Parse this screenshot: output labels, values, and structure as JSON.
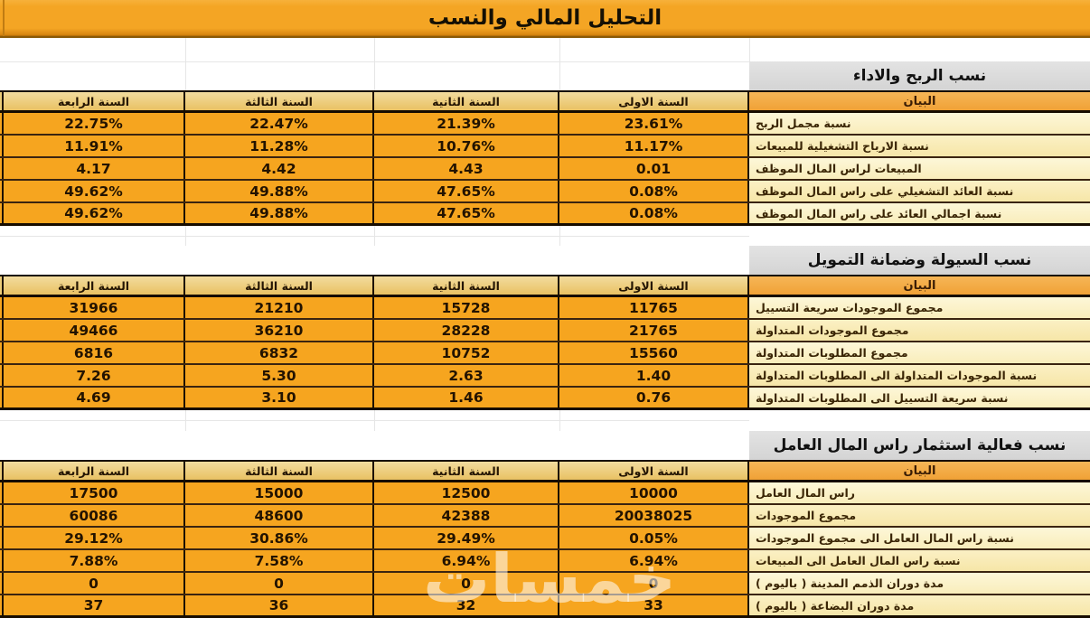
{
  "title": "التحليل المالي والنسب",
  "watermark": "خمسات",
  "colors": {
    "accent_orange": "#F4A524",
    "cell_cream": "#FBF1C6",
    "band_gray": "#D8D8D8"
  },
  "columns": {
    "statement": "البيان",
    "year1": "السنة الاولى",
    "year2": "السنة الثانية",
    "year3": "السنة الثالثة",
    "year4": "السنة الرابعة"
  },
  "sections": [
    {
      "heading": "نسب الربح والاداء",
      "rows": [
        {
          "label": "نسبة مجمل الربح",
          "y1": "23.61%",
          "y2": "21.39%",
          "y3": "22.47%",
          "y4": "22.75%"
        },
        {
          "label": "نسبة الارباح التشغيلية للمبيعات",
          "y1": "11.17%",
          "y2": "10.76%",
          "y3": "11.28%",
          "y4": "11.91%"
        },
        {
          "label": "المبيعات لراس المال الموظف",
          "y1": "0.01",
          "y2": "4.43",
          "y3": "4.42",
          "y4": "4.17"
        },
        {
          "label": "نسبة العائد التشغيلي على راس المال الموظف",
          "y1": "0.08%",
          "y2": "47.65%",
          "y3": "49.88%",
          "y4": "49.62%"
        },
        {
          "label": "نسبة اجمالي العائد على راس المال الموظف",
          "y1": "0.08%",
          "y2": "47.65%",
          "y3": "49.88%",
          "y4": "49.62%"
        }
      ]
    },
    {
      "heading": "نسب السيولة وضمانة التمويل",
      "rows": [
        {
          "label": "مجموع الموجودات سريعة التسييل",
          "y1": "11765",
          "y2": "15728",
          "y3": "21210",
          "y4": "31966"
        },
        {
          "label": "مجموع الموجودات المتداولة",
          "y1": "21765",
          "y2": "28228",
          "y3": "36210",
          "y4": "49466"
        },
        {
          "label": "مجموع المطلوبات المتداولة",
          "y1": "15560",
          "y2": "10752",
          "y3": "6832",
          "y4": "6816"
        },
        {
          "label": "نسبة الموجودات المتداولة الى المطلوبات المتداولة",
          "y1": "1.40",
          "y2": "2.63",
          "y3": "5.30",
          "y4": "7.26"
        },
        {
          "label": "نسبة سريعة التسييل الى المطلوبات المتداولة",
          "y1": "0.76",
          "y2": "1.46",
          "y3": "3.10",
          "y4": "4.69"
        }
      ]
    },
    {
      "heading": "نسب فعالية استثمار راس المال العامل",
      "rows": [
        {
          "label": "راس المال العامل",
          "y1": "10000",
          "y2": "12500",
          "y3": "15000",
          "y4": "17500"
        },
        {
          "label": "مجموع الموجودات",
          "y1": "20038025",
          "y2": "42388",
          "y3": "48600",
          "y4": "60086"
        },
        {
          "label": "نسبة راس المال العامل الى مجموع الموجودات",
          "y1": "0.05%",
          "y2": "29.49%",
          "y3": "30.86%",
          "y4": "29.12%"
        },
        {
          "label": "نسبة راس المال العامل الى المبيعات",
          "y1": "6.94%",
          "y2": "6.94%",
          "y3": "7.58%",
          "y4": "7.88%"
        },
        {
          "label": "مدة دوران الذمم المدينة ( باليوم )",
          "y1": "0",
          "y2": "0",
          "y3": "0",
          "y4": "0"
        },
        {
          "label": "مدة دوران البضاعة ( باليوم )",
          "y1": "33",
          "y2": "32",
          "y3": "36",
          "y4": "37"
        }
      ]
    }
  ]
}
